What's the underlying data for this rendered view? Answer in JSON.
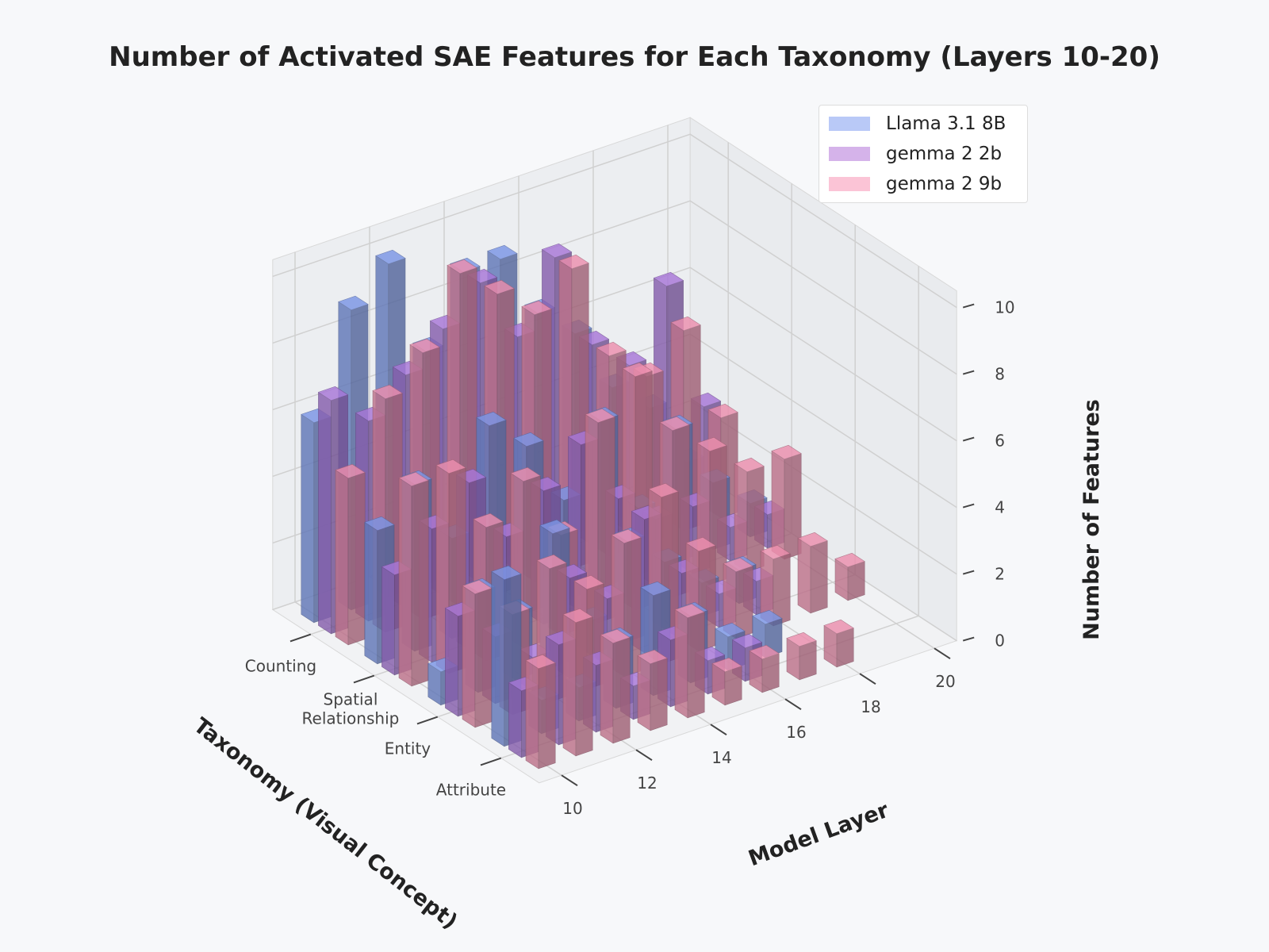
{
  "chart_data": {
    "type": "bar3d",
    "title": "Number of Activated SAE Features for Each Taxonomy (Layers 10-20)",
    "xlabel": "Model Layer",
    "ylabel": "Taxonomy (Visual Concept)",
    "zlabel": "Number of Features",
    "layers": [
      10,
      11,
      12,
      13,
      14,
      15,
      16,
      17,
      18,
      19,
      20
    ],
    "layer_ticks": [
      "10",
      "12",
      "14",
      "16",
      "18",
      "20"
    ],
    "taxonomies": [
      "Counting",
      "Spatial\nRelationship",
      "Entity",
      "Attribute"
    ],
    "z_ticks": [
      "0",
      "2",
      "4",
      "6",
      "8",
      "10"
    ],
    "zlim": [
      0,
      10.5
    ],
    "legend_position": "top-right",
    "series": [
      {
        "name": "Llama 3.1 8B",
        "color": "#7b96e6",
        "values": [
          [
            6,
            9,
            10,
            7,
            9,
            9,
            7,
            6,
            4,
            3,
            1
          ],
          [
            4,
            5,
            3,
            6,
            5,
            3,
            5,
            2,
            4,
            2,
            1
          ],
          [
            1,
            3,
            2,
            4,
            1,
            3,
            2,
            1,
            1,
            0,
            0
          ],
          [
            5,
            1,
            1,
            2,
            3,
            2,
            1,
            1,
            0,
            0,
            0
          ]
        ]
      },
      {
        "name": "gemma 2 2b",
        "color": "#a877d8",
        "values": [
          [
            7,
            6,
            7,
            8,
            9,
            7,
            9,
            6,
            5,
            7,
            3
          ],
          [
            3,
            4,
            5,
            3,
            4,
            5,
            3,
            2,
            2,
            1,
            1
          ],
          [
            3,
            2,
            1,
            3,
            2,
            4,
            2,
            1,
            1,
            0,
            0
          ],
          [
            2,
            3,
            2,
            1,
            2,
            1,
            1,
            0,
            0,
            0,
            0
          ]
        ]
      },
      {
        "name": "gemma 2 9b",
        "color": "#ec8fae",
        "values": [
          [
            5,
            7,
            8,
            10,
            9,
            8,
            9,
            6,
            5,
            6,
            3
          ],
          [
            6,
            6,
            4,
            5,
            3,
            6,
            7,
            5,
            4,
            3,
            3
          ],
          [
            4,
            3,
            4,
            3,
            4,
            5,
            3,
            2,
            2,
            2,
            1
          ],
          [
            3,
            4,
            3,
            2,
            3,
            1,
            1,
            1,
            1,
            0,
            0
          ]
        ]
      }
    ]
  }
}
